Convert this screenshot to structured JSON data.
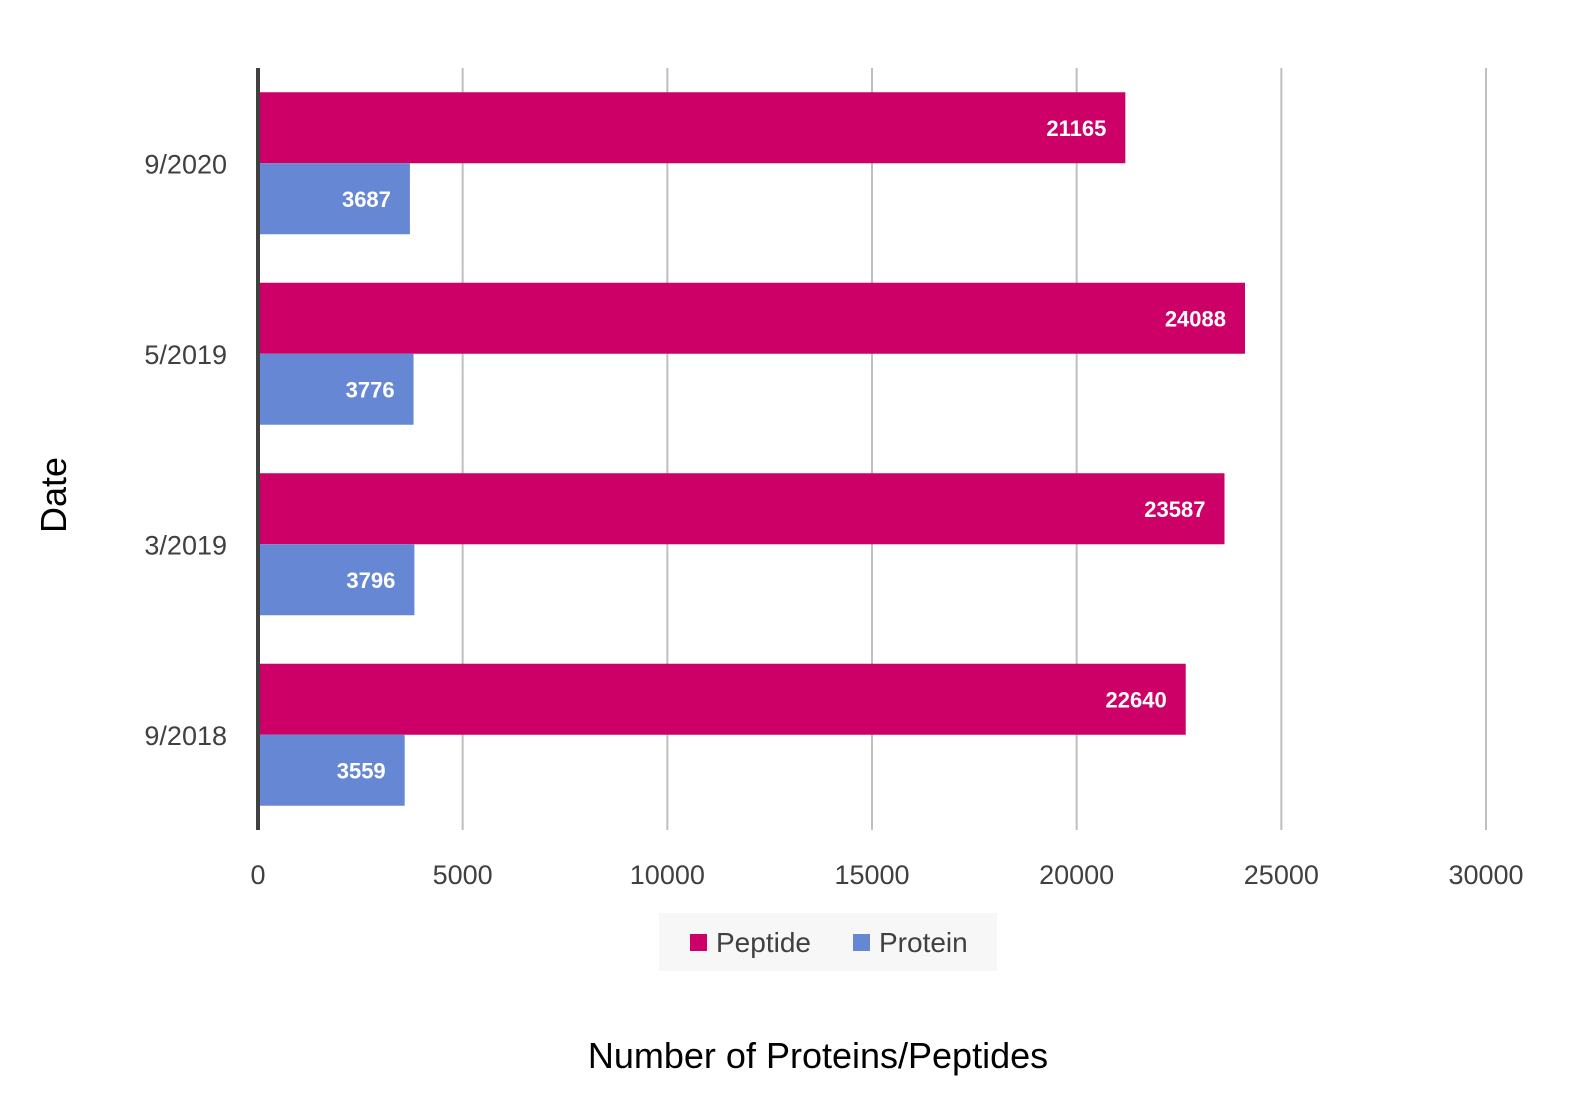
{
  "chart_data": {
    "type": "bar",
    "orientation": "horizontal",
    "categories": [
      "9/2020",
      "5/2019",
      "3/2019",
      "9/2018"
    ],
    "series": [
      {
        "name": "Peptide",
        "color": "#cc0066",
        "values": [
          21165,
          24088,
          23587,
          22640
        ]
      },
      {
        "name": "Protein",
        "color": "#6688d4",
        "values": [
          3687,
          3776,
          3796,
          3559
        ]
      }
    ],
    "x_ticks": [
      0,
      5000,
      10000,
      15000,
      20000,
      25000,
      30000
    ],
    "xlim": [
      0,
      30000
    ],
    "xlabel": "Number of Proteins/Peptides",
    "ylabel": "Date",
    "grid": "vertical",
    "legend_position": "bottom",
    "data_labels": true
  }
}
